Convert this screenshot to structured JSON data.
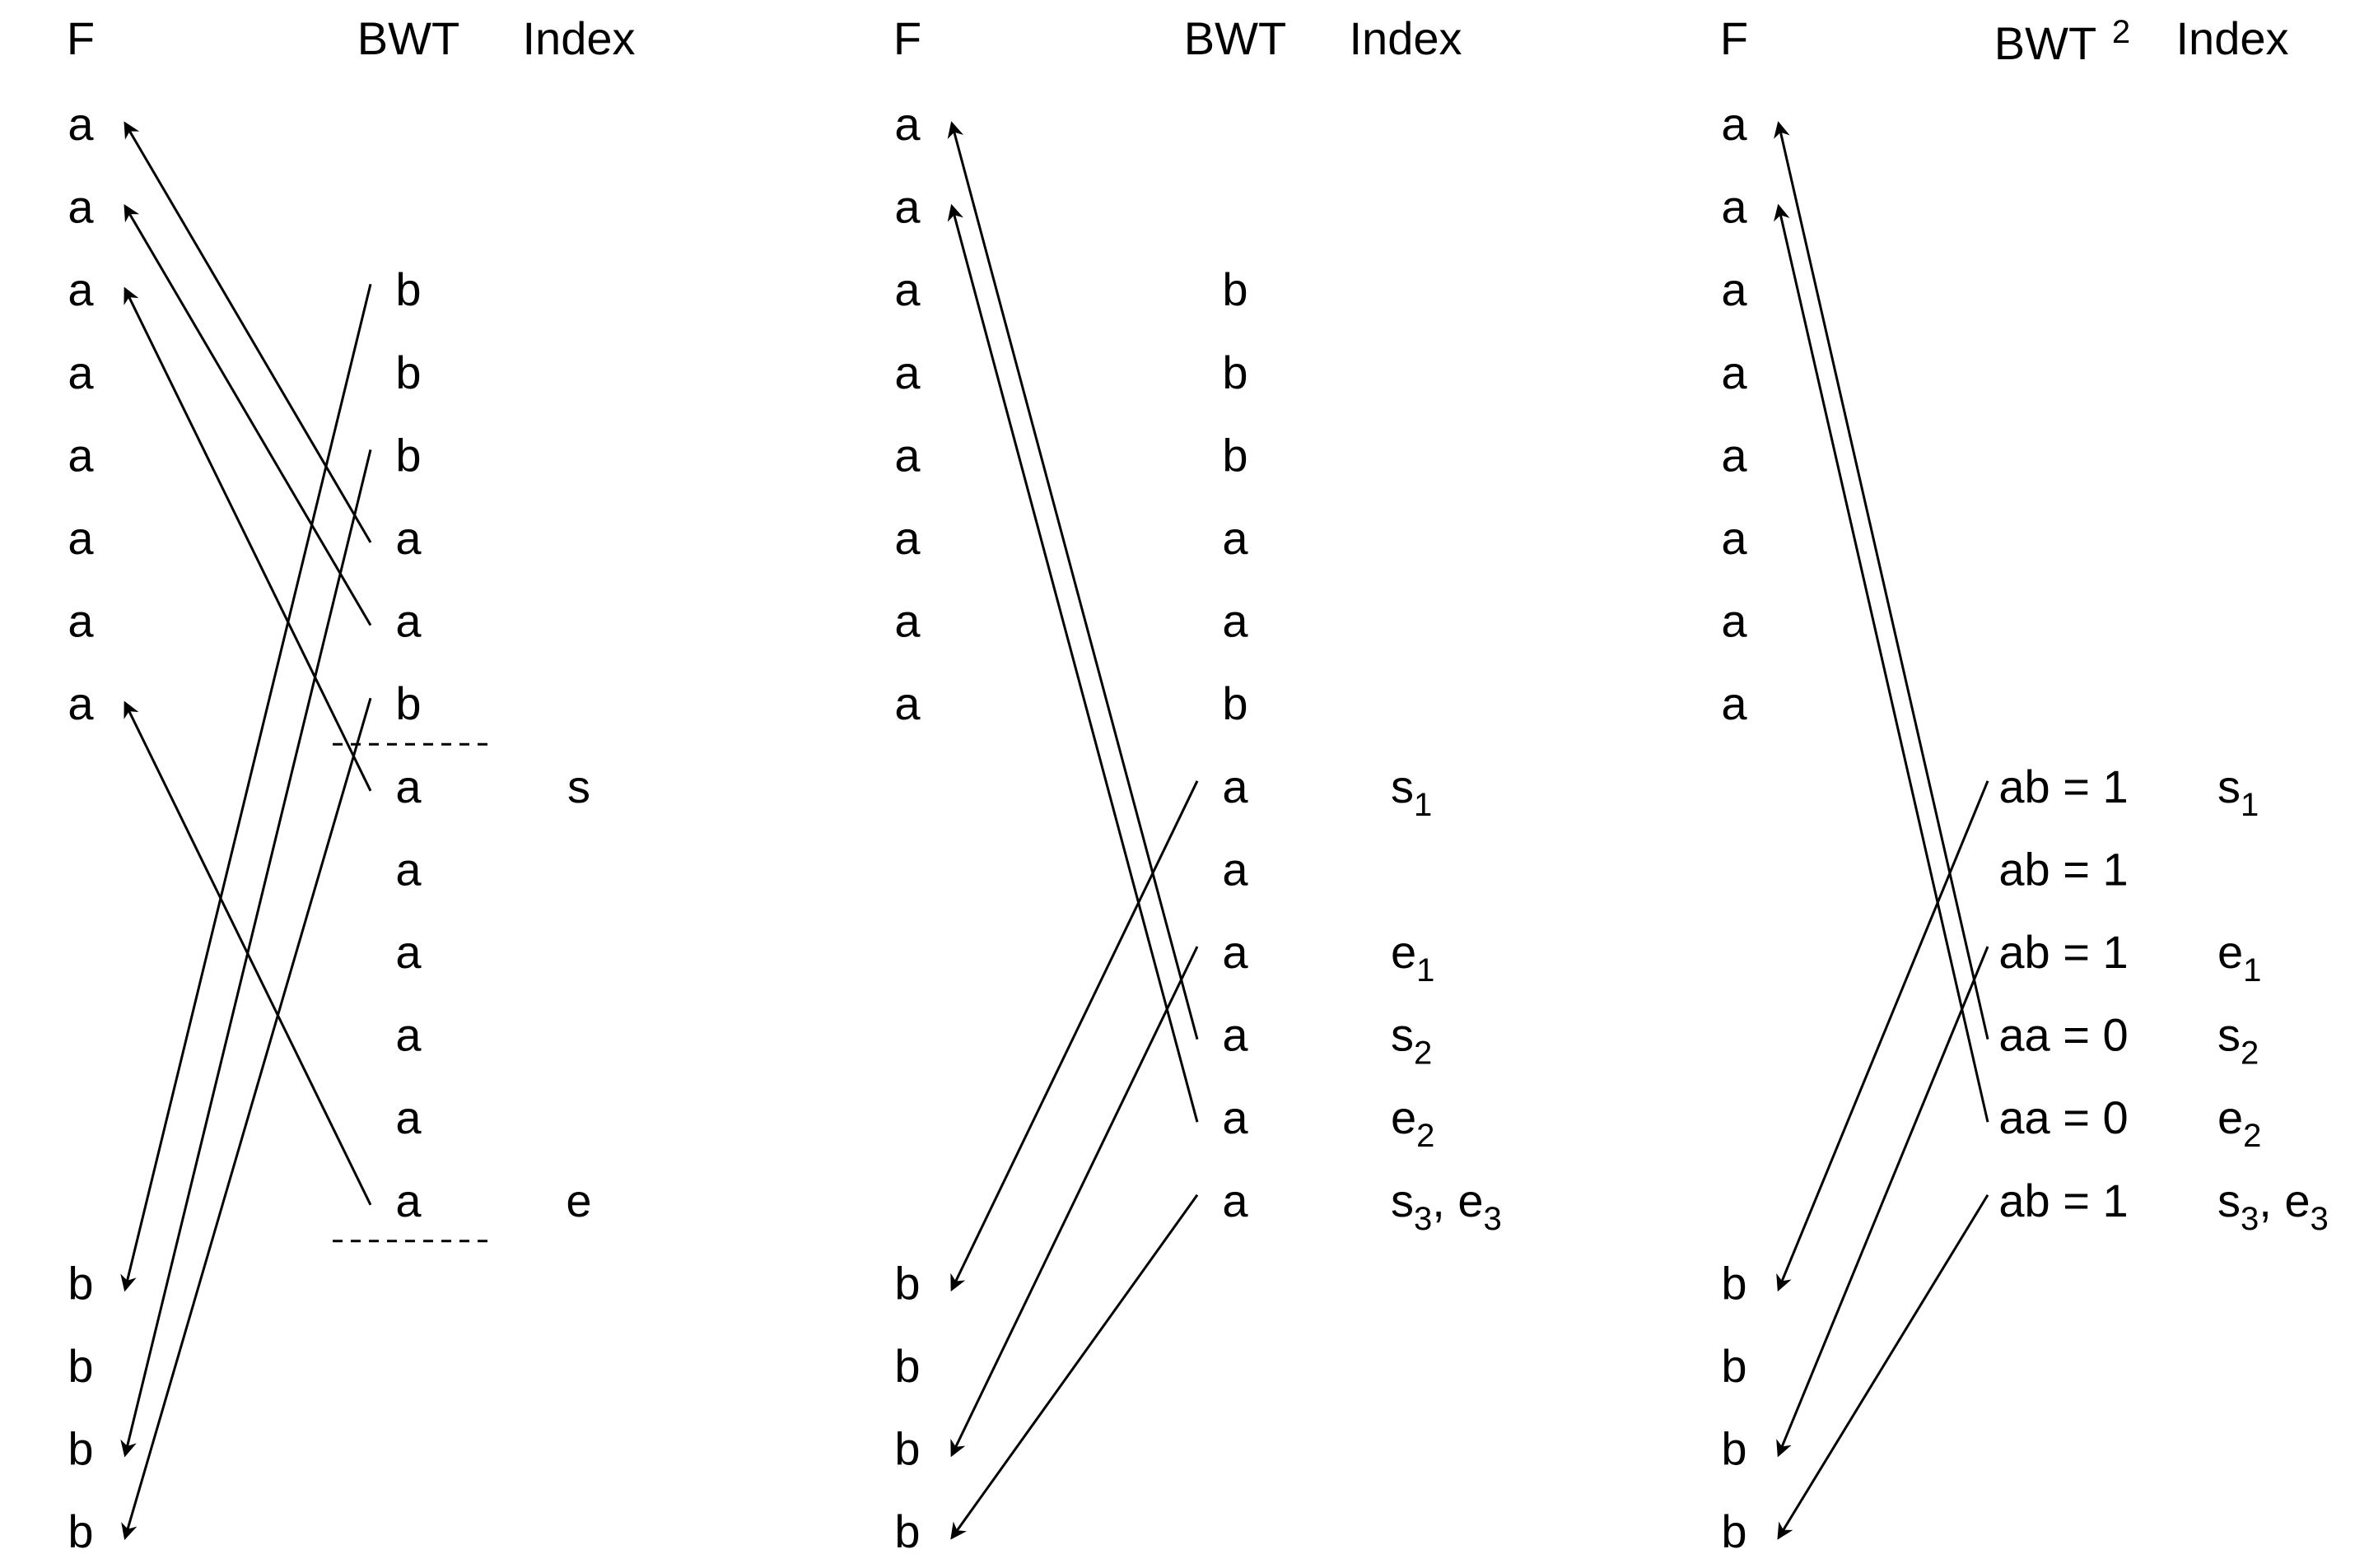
{
  "panels": [
    {
      "headers": {
        "f": "F",
        "bwt": "BWT",
        "bwt_sup": "",
        "index": "Index"
      },
      "f_column": [
        "a",
        "a",
        "a",
        "a",
        "a",
        "a",
        "a",
        "a",
        "",
        "",
        "",
        "",
        "",
        "",
        "b",
        "b",
        "b",
        "b"
      ],
      "bwt_column": [
        "",
        "",
        "b",
        "b",
        "b",
        "a",
        "a",
        "b",
        "a",
        "a",
        "a",
        "a",
        "a",
        "a",
        "",
        "",
        "",
        ""
      ],
      "index_column": [
        null,
        null,
        null,
        null,
        null,
        null,
        null,
        null,
        {
          "letter": "s",
          "sub": "",
          "tail": ""
        },
        null,
        null,
        null,
        null,
        {
          "letter": "e",
          "sub": "",
          "tail": ""
        },
        null,
        null,
        null,
        null
      ],
      "dashed_separators_after_rows": [
        7,
        13
      ],
      "arrows": [
        {
          "from_bwt_row": 5,
          "to_f_row": 0
        },
        {
          "from_bwt_row": 6,
          "to_f_row": 1
        },
        {
          "from_bwt_row": 8,
          "to_f_row": 2
        },
        {
          "from_bwt_row": 13,
          "to_f_row": 7
        },
        {
          "from_bwt_row": 2,
          "to_f_row": 14
        },
        {
          "from_bwt_row": 4,
          "to_f_row": 16
        },
        {
          "from_bwt_row": 7,
          "to_f_row": 17
        }
      ]
    },
    {
      "headers": {
        "f": "F",
        "bwt": "BWT",
        "bwt_sup": "",
        "index": "Index"
      },
      "f_column": [
        "a",
        "a",
        "a",
        "a",
        "a",
        "a",
        "a",
        "a",
        "",
        "",
        "",
        "",
        "",
        "",
        "b",
        "b",
        "b",
        "b"
      ],
      "bwt_column": [
        "",
        "",
        "b",
        "b",
        "b",
        "a",
        "a",
        "b",
        "a",
        "a",
        "a",
        "a",
        "a",
        "a",
        "",
        "",
        "",
        ""
      ],
      "index_column": [
        null,
        null,
        null,
        null,
        null,
        null,
        null,
        null,
        {
          "letter": "s",
          "sub": "1",
          "tail": ""
        },
        null,
        {
          "letter": "e",
          "sub": "1",
          "tail": ""
        },
        {
          "letter": "s",
          "sub": "2",
          "tail": ""
        },
        {
          "letter": "e",
          "sub": "2",
          "tail": ""
        },
        {
          "letter": "s",
          "sub": "3",
          "tail": ", e",
          "sub2": "3"
        },
        null,
        null,
        null,
        null
      ],
      "dashed_separators_after_rows": [],
      "arrows": [
        {
          "from_bwt_row": 11,
          "to_f_row": 0
        },
        {
          "from_bwt_row": 12,
          "to_f_row": 1
        },
        {
          "from_bwt_row": 8,
          "to_f_row": 14
        },
        {
          "from_bwt_row": 10,
          "to_f_row": 16
        },
        {
          "from_bwt_row": 13,
          "to_f_row": 17
        }
      ]
    },
    {
      "headers": {
        "f": "F",
        "bwt": "BWT",
        "bwt_sup": "2",
        "index": "Index"
      },
      "f_column": [
        "a",
        "a",
        "a",
        "a",
        "a",
        "a",
        "a",
        "a",
        "",
        "",
        "",
        "",
        "",
        "",
        "b",
        "b",
        "b",
        "b"
      ],
      "bwt_column": [
        "",
        "",
        "",
        "",
        "",
        "",
        "",
        "",
        "ab = 1",
        "ab = 1",
        "ab = 1",
        "aa = 0",
        "aa = 0",
        "ab = 1",
        "",
        "",
        "",
        ""
      ],
      "index_column": [
        null,
        null,
        null,
        null,
        null,
        null,
        null,
        null,
        {
          "letter": "s",
          "sub": "1",
          "tail": ""
        },
        null,
        {
          "letter": "e",
          "sub": "1",
          "tail": ""
        },
        {
          "letter": "s",
          "sub": "2",
          "tail": ""
        },
        {
          "letter": "e",
          "sub": "2",
          "tail": ""
        },
        {
          "letter": "s",
          "sub": "3",
          "tail": ", e",
          "sub2": "3"
        },
        null,
        null,
        null,
        null
      ],
      "dashed_separators_after_rows": [],
      "arrows": [
        {
          "from_bwt_row": 11,
          "to_f_row": 0
        },
        {
          "from_bwt_row": 12,
          "to_f_row": 1
        },
        {
          "from_bwt_row": 8,
          "to_f_row": 14
        },
        {
          "from_bwt_row": 10,
          "to_f_row": 16
        },
        {
          "from_bwt_row": 13,
          "to_f_row": 17
        }
      ]
    }
  ]
}
